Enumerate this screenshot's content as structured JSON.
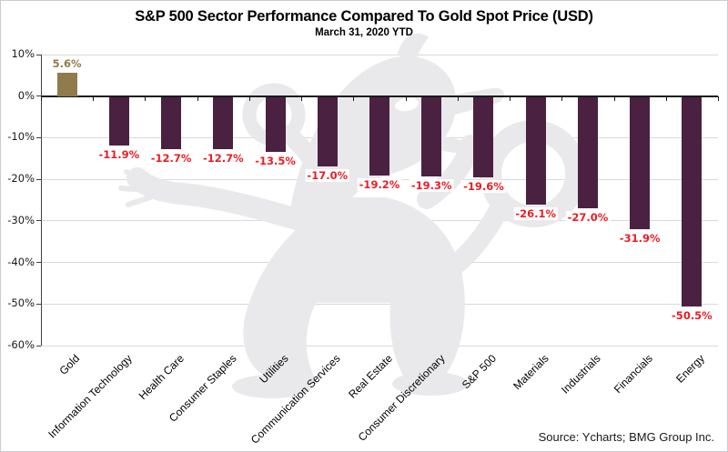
{
  "chart_data": {
    "type": "bar",
    "title": "S&P 500 Sector Performance Compared To Gold Spot Price (USD)",
    "subtitle": "March 31, 2020 YTD",
    "categories": [
      "Gold",
      "Information Technology",
      "Health Care",
      "Consumer Staples",
      "Utilities",
      "Communication Services",
      "Real Estate",
      "Consumer Discretionary",
      "S&P 500",
      "Materials",
      "Industrials",
      "Financials",
      "Energy"
    ],
    "values": [
      5.6,
      -11.9,
      -12.7,
      -12.7,
      -13.5,
      -17.0,
      -19.2,
      -19.3,
      -19.6,
      -26.1,
      -27.0,
      -31.9,
      -50.5
    ],
    "value_labels": [
      "5.6%",
      "-11.9%",
      "-12.7%",
      "-12.7%",
      "-13.5%",
      "-17.0%",
      "-19.2%",
      "-19.3%",
      "-19.6%",
      "-26.1%",
      "-27.0%",
      "-31.9%",
      "-50.5%"
    ],
    "xlabel": "",
    "ylabel": "",
    "ylim": [
      -60,
      10
    ],
    "ytick_step": 10,
    "ytick_labels": [
      "10%",
      "0%",
      "-10%",
      "-20%",
      "-30%",
      "-40%",
      "-50%",
      "-60%"
    ],
    "grid": true,
    "legend": false
  },
  "source_note": "Source: Ycharts; BMG Group Inc.",
  "colors": {
    "gold_bar": "#8F7B4C",
    "sector_bar": "#4A2140",
    "positive_label": "#8F7B4C",
    "negative_label": "#ED1C24",
    "gridline": "#D9D9D9",
    "zero_line": "#1A1A1A",
    "axis": "#404040",
    "watermark": "#E9E9EC"
  }
}
